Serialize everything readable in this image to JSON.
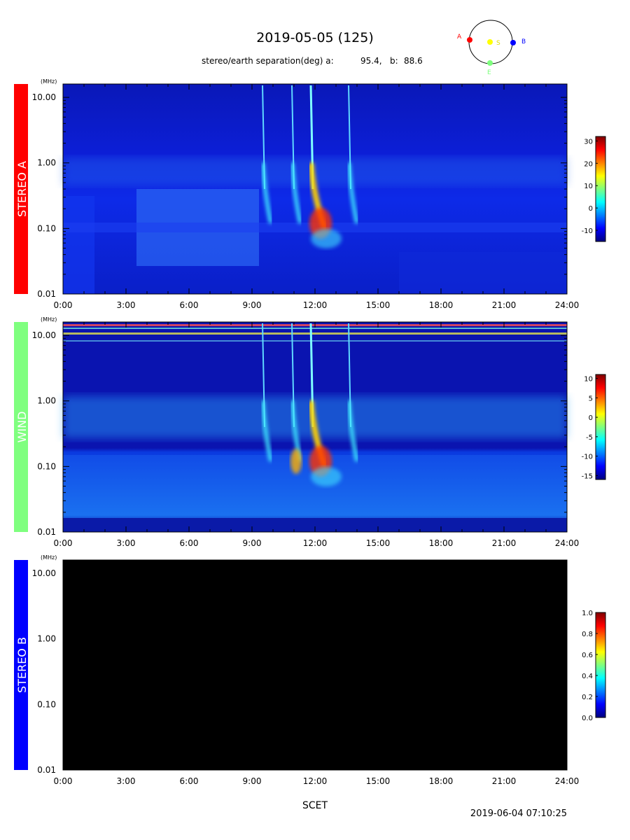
{
  "header": {
    "title": "2019-05-05 (125)",
    "separation_label": "stereo/earth separation(deg) a:",
    "sep_a": "95.4,",
    "sep_b_label": "b:",
    "sep_b": "88.6"
  },
  "orbit": {
    "labels": {
      "a": "A",
      "b": "B",
      "s": "S",
      "e": "E"
    },
    "colors": {
      "a": "#ff0000",
      "b": "#0000ff",
      "s": "#ffff00",
      "e": "#7fff7f"
    }
  },
  "footer": {
    "xaxis_label": "SCET",
    "timestamp": "2019-06-04 07:10:25"
  },
  "chart_data": [
    {
      "type": "heatmap",
      "panel": "STEREO A",
      "panel_color": "#ff0000",
      "unit_label": "(MHz)",
      "x_ticks": [
        "0:00",
        "3:00",
        "6:00",
        "9:00",
        "12:00",
        "15:00",
        "18:00",
        "21:00",
        "24:00"
      ],
      "y_ticks": [
        "10.00",
        "1.00",
        "0.10",
        "0.01"
      ],
      "ylim_mhz": [
        0.01,
        16
      ],
      "xlim_hours": [
        0,
        24
      ],
      "colorbar": {
        "ticks": [
          "30",
          "20",
          "10",
          "0",
          "-10"
        ],
        "range": [
          -15,
          32
        ],
        "colormap": "jet"
      },
      "background_level": -9,
      "bursts_hours": [
        9.5,
        10.9,
        11.8,
        13.6
      ],
      "data_gap": false
    },
    {
      "type": "heatmap",
      "panel": "WIND",
      "panel_color": "#7fff7f",
      "unit_label": "(MHz)",
      "x_ticks": [
        "0:00",
        "3:00",
        "6:00",
        "9:00",
        "12:00",
        "15:00",
        "18:00",
        "21:00",
        "24:00"
      ],
      "y_ticks": [
        "10.00",
        "1.00",
        "0.10",
        "0.01"
      ],
      "ylim_mhz": [
        0.01,
        16
      ],
      "xlim_hours": [
        0,
        24
      ],
      "colorbar": {
        "ticks": [
          "10",
          "5",
          "0",
          "-5",
          "-10",
          "-15"
        ],
        "range": [
          -16,
          11
        ],
        "colormap": "jet"
      },
      "background_level": -14,
      "bursts_hours": [
        9.5,
        10.9,
        11.8,
        13.6
      ],
      "data_gap": false
    },
    {
      "type": "heatmap",
      "panel": "STEREO B",
      "panel_color": "#0000ff",
      "unit_label": "(MHz)",
      "x_ticks": [
        "0:00",
        "3:00",
        "6:00",
        "9:00",
        "12:00",
        "15:00",
        "18:00",
        "21:00",
        "24:00"
      ],
      "y_ticks": [
        "10.00",
        "1.00",
        "0.10",
        "0.01"
      ],
      "ylim_mhz": [
        0.01,
        16
      ],
      "xlim_hours": [
        0,
        24
      ],
      "colorbar": {
        "ticks": [
          "1.0",
          "0.8",
          "0.6",
          "0.4",
          "0.2",
          "0.0"
        ],
        "range": [
          0,
          1
        ],
        "colormap": "jet"
      },
      "background_level": 0,
      "bursts_hours": [],
      "data_gap": true
    }
  ]
}
